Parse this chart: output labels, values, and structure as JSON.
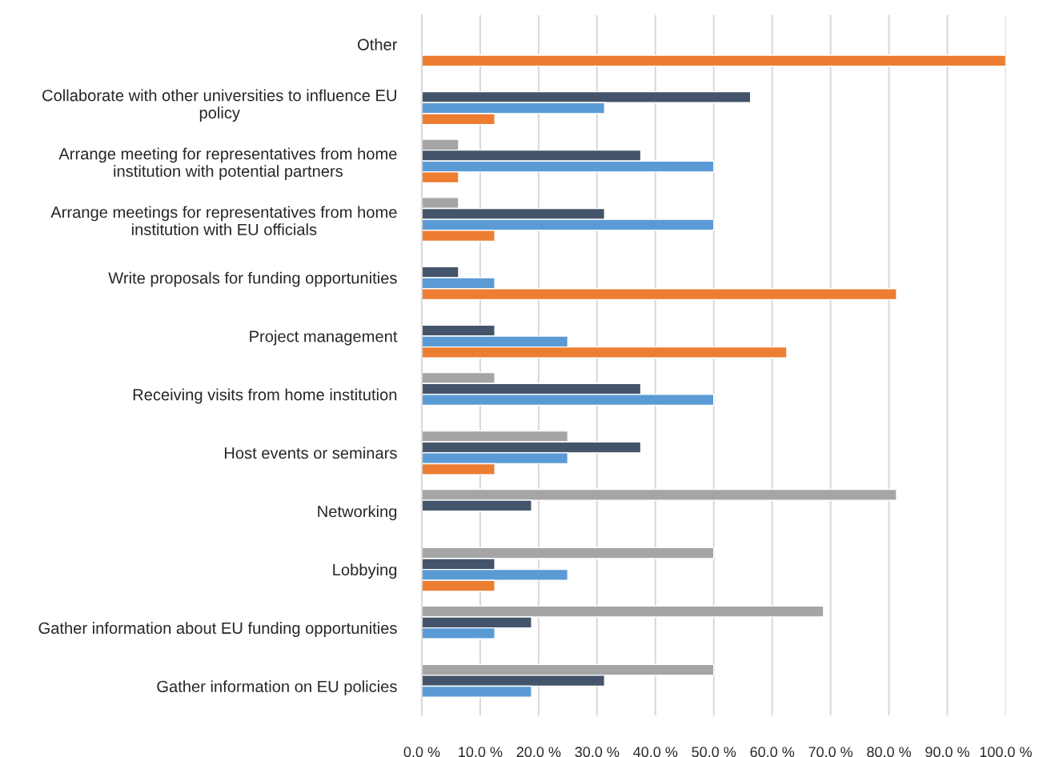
{
  "chart_data": {
    "type": "bar",
    "orientation": "horizontal",
    "categories": [
      "Other",
      "Collaborate with other universities to influence EU\npolicy",
      "Arrange meeting for representatives from home\ninstitution with potential partners",
      "Arrange meetings for representatives from home\ninstitution with EU officials",
      "Write proposals for funding opportunities",
      "Project management",
      "Receiving visits from home institution",
      "Host events or seminars",
      "Networking",
      "Lobbying",
      "Gather information about EU funding opportunities",
      "Gather information on EU policies"
    ],
    "series": [
      {
        "color": "#a5a5a5",
        "values": [
          null,
          null,
          6.3,
          6.3,
          null,
          null,
          12.5,
          25,
          81.3,
          50,
          68.8,
          50
        ]
      },
      {
        "color": "#44546a",
        "values": [
          null,
          56.3,
          37.5,
          31.3,
          6.3,
          12.5,
          37.5,
          37.5,
          18.8,
          12.5,
          18.8,
          31.3
        ]
      },
      {
        "color": "#5b9bd5",
        "values": [
          null,
          31.3,
          50,
          50,
          12.5,
          25,
          50,
          25,
          null,
          25,
          12.5,
          18.8
        ]
      },
      {
        "color": "#ed7d31",
        "values": [
          100,
          12.5,
          6.3,
          12.5,
          81.3,
          62.5,
          null,
          12.5,
          null,
          12.5,
          null,
          null
        ]
      }
    ],
    "xlim": [
      0,
      100
    ],
    "xticks": [
      {
        "value": 0,
        "label": "0.0 %"
      },
      {
        "value": 10,
        "label": "10.0 %"
      },
      {
        "value": 20,
        "label": "20.0 %"
      },
      {
        "value": 30,
        "label": "30.0 %"
      },
      {
        "value": 40,
        "label": "40.0 %"
      },
      {
        "value": 50,
        "label": "50.0 %"
      },
      {
        "value": 60,
        "label": "60.0 %"
      },
      {
        "value": 70,
        "label": "70.0 %"
      },
      {
        "value": 80,
        "label": "80.0 %"
      },
      {
        "value": 90,
        "label": "90.0 %"
      },
      {
        "value": 100,
        "label": "100.0 %"
      }
    ],
    "grid": "x"
  }
}
